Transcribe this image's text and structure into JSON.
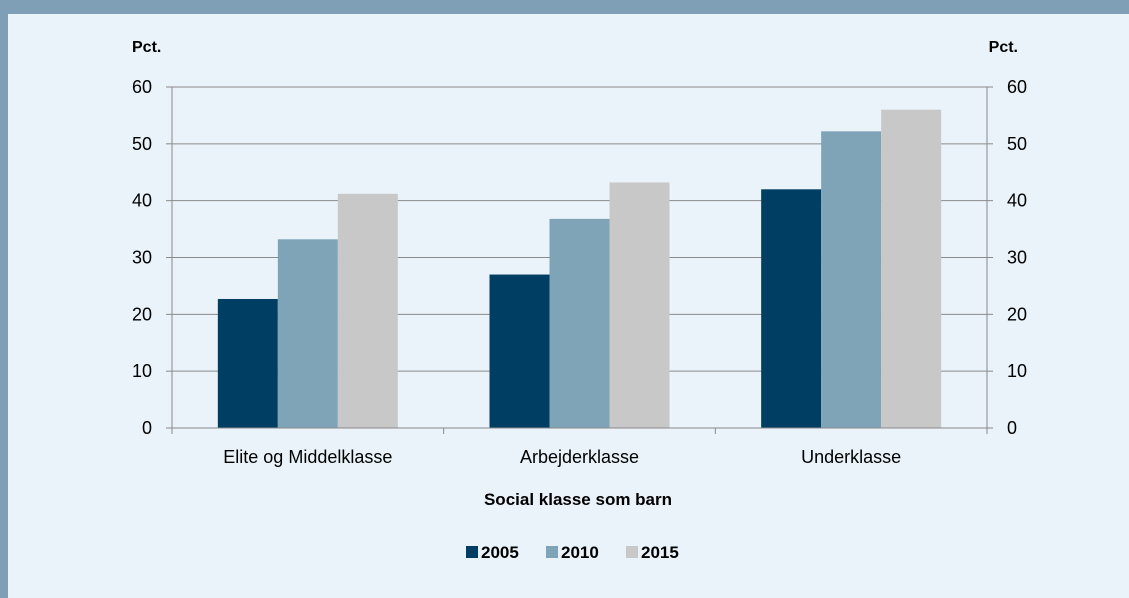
{
  "chart_data": {
    "type": "bar",
    "categories": [
      "Elite og Middelklasse",
      "Arbejderklasse",
      "Underklasse"
    ],
    "series": [
      {
        "name": "2005",
        "values": [
          22.7,
          27.0,
          42.0
        ],
        "color": "#003f63"
      },
      {
        "name": "2010",
        "values": [
          33.2,
          36.8,
          52.2
        ],
        "color": "#7fa4b8"
      },
      {
        "name": "2015",
        "values": [
          41.2,
          43.2,
          56.0
        ],
        "color": "#c8c8c8"
      }
    ],
    "ylabel_left": "Pct.",
    "ylabel_right": "Pct.",
    "xlabel": "Social klasse som barn",
    "ylim": [
      0,
      60
    ],
    "yticks": [
      0,
      10,
      20,
      30,
      40,
      50,
      60
    ],
    "grid": true,
    "legend_position": "bottom"
  }
}
